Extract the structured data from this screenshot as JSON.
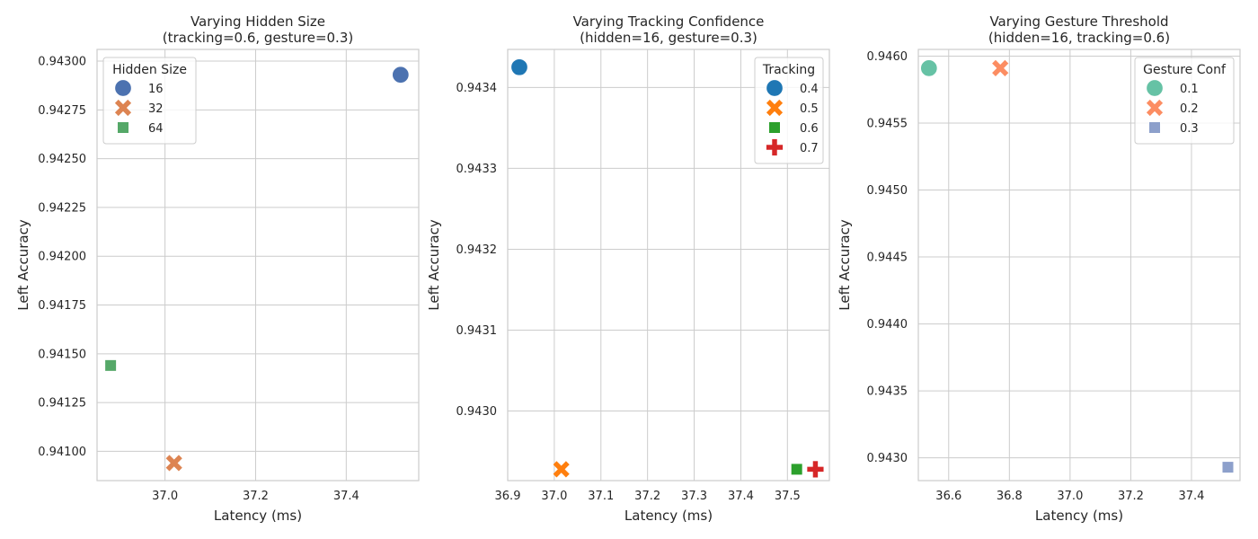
{
  "chart_data": [
    {
      "type": "scatter",
      "title": "Varying Hidden Size\n(tracking=0.6, gesture=0.3)",
      "xlabel": "Latency (ms)",
      "ylabel": "Left Accuracy",
      "xlim": [
        36.85,
        37.56
      ],
      "ylim": [
        0.94085,
        0.94306
      ],
      "xticks": [
        37.0,
        37.2,
        37.4
      ],
      "xtick_labels": [
        "37.0",
        "37.2",
        "37.4"
      ],
      "yticks": [
        0.941,
        0.94125,
        0.9415,
        0.94175,
        0.942,
        0.94225,
        0.9425,
        0.94275,
        0.943
      ],
      "ytick_labels": [
        "0.94100",
        "0.94125",
        "0.94150",
        "0.94175",
        "0.94200",
        "0.94225",
        "0.94250",
        "0.94275",
        "0.94300"
      ],
      "grid": true,
      "legend": {
        "title": "Hidden Size",
        "placement": "upper-left"
      },
      "series": [
        {
          "name": "16",
          "marker": "circle",
          "color": "#4c72b0",
          "points": [
            [
              37.52,
              0.94293
            ]
          ]
        },
        {
          "name": "32",
          "marker": "x",
          "color": "#dd8452",
          "points": [
            [
              37.02,
              0.94094
            ]
          ]
        },
        {
          "name": "64",
          "marker": "square",
          "color": "#55a868",
          "points": [
            [
              36.88,
              0.94144
            ]
          ]
        }
      ]
    },
    {
      "type": "scatter",
      "title": "Varying Tracking Confidence\n(hidden=16, gesture=0.3)",
      "xlabel": "Latency (ms)",
      "ylabel": "Left Accuracy",
      "xlim": [
        36.9,
        37.59
      ],
      "ylim": [
        0.942914,
        0.943447
      ],
      "xticks": [
        36.9,
        37.0,
        37.1,
        37.2,
        37.3,
        37.4,
        37.5
      ],
      "xtick_labels": [
        "36.9",
        "37.0",
        "37.1",
        "37.2",
        "37.3",
        "37.4",
        "37.5"
      ],
      "yticks": [
        0.943,
        0.9431,
        0.9432,
        0.9433,
        0.9434
      ],
      "ytick_labels": [
        "0.9430",
        "0.9431",
        "0.9432",
        "0.9433",
        "0.9434"
      ],
      "grid": true,
      "legend": {
        "title": "Tracking",
        "placement": "upper-right"
      },
      "series": [
        {
          "name": "0.4",
          "marker": "circle",
          "color": "#1f77b4",
          "points": [
            [
              36.925,
              0.943425
            ]
          ]
        },
        {
          "name": "0.5",
          "marker": "x",
          "color": "#ff7f0e",
          "points": [
            [
              37.015,
              0.942928
            ]
          ]
        },
        {
          "name": "0.6",
          "marker": "square",
          "color": "#2ca02c",
          "points": [
            [
              37.52,
              0.942928
            ]
          ]
        },
        {
          "name": "0.7",
          "marker": "plus",
          "color": "#d62728",
          "points": [
            [
              37.56,
              0.942928
            ]
          ]
        }
      ]
    },
    {
      "type": "scatter",
      "title": "Varying Gesture Threshold\n(hidden=16, tracking=0.6)",
      "xlabel": "Latency (ms)",
      "ylabel": "Left Accuracy",
      "xlim": [
        36.5,
        37.56
      ],
      "ylim": [
        0.94283,
        0.94605
      ],
      "xticks": [
        36.6,
        36.8,
        37.0,
        37.2,
        37.4
      ],
      "xtick_labels": [
        "36.6",
        "36.8",
        "37.0",
        "37.2",
        "37.4"
      ],
      "yticks": [
        0.943,
        0.9435,
        0.944,
        0.9445,
        0.945,
        0.9455,
        0.946
      ],
      "ytick_labels": [
        "0.9430",
        "0.9435",
        "0.9440",
        "0.9445",
        "0.9450",
        "0.9455",
        "0.9460"
      ],
      "grid": true,
      "legend": {
        "title": "Gesture Conf",
        "placement": "upper-right"
      },
      "series": [
        {
          "name": "0.1",
          "marker": "circle",
          "color": "#66c2a5",
          "points": [
            [
              36.535,
              0.94591
            ]
          ]
        },
        {
          "name": "0.2",
          "marker": "x",
          "color": "#fc8d62",
          "points": [
            [
              36.77,
              0.94591
            ]
          ]
        },
        {
          "name": "0.3",
          "marker": "square",
          "color": "#8da0cb",
          "points": [
            [
              37.52,
              0.94293
            ]
          ]
        }
      ]
    }
  ]
}
